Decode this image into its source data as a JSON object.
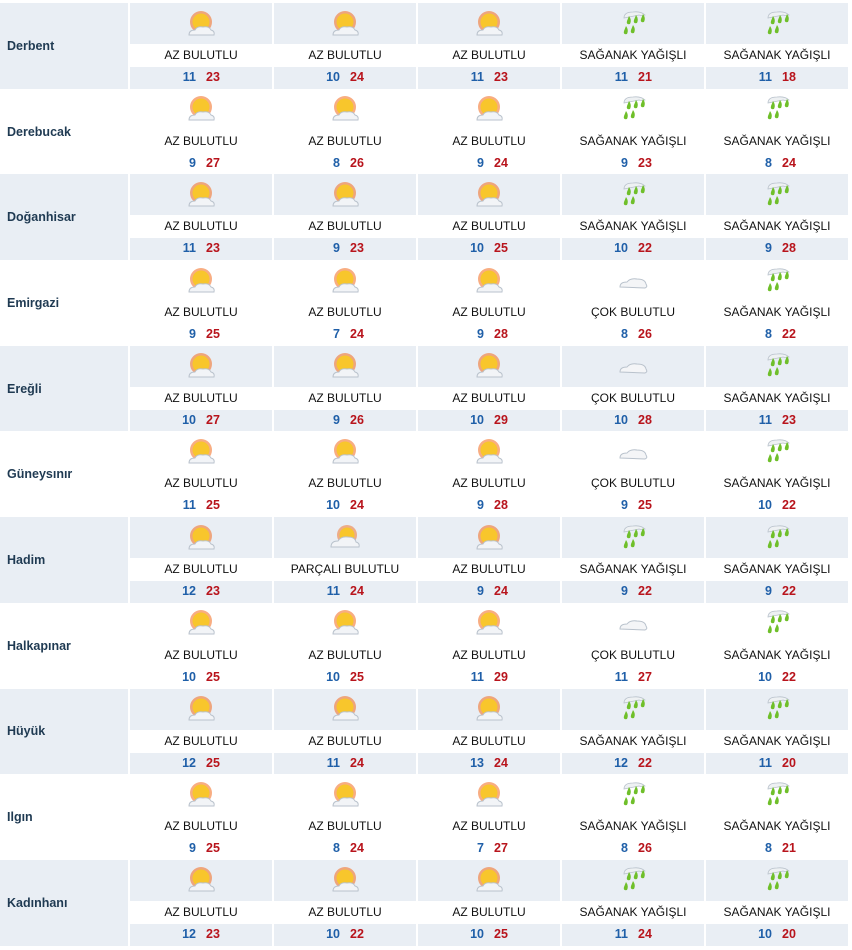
{
  "conditions": {
    "az": "AZ BULUTLU",
    "parcali": "PARÇALI BULUTLU",
    "cok": "ÇOK BULUTLU",
    "saganak": "SAĞANAK YAĞIŞLI"
  },
  "colors": {
    "min": "#1f5fa8",
    "max": "#b8141c",
    "row_alt": "#e9eef4"
  },
  "rows": [
    {
      "city": "Derbent",
      "days": [
        {
          "c": "az",
          "label": "AZ BULUTLU",
          "min": "11",
          "max": "23"
        },
        {
          "c": "az",
          "label": "AZ BULUTLU",
          "min": "10",
          "max": "24"
        },
        {
          "c": "az",
          "label": "AZ BULUTLU",
          "min": "11",
          "max": "23"
        },
        {
          "c": "saganak",
          "label": "SAĞANAK YAĞIŞLI",
          "min": "11",
          "max": "21"
        },
        {
          "c": "saganak",
          "label": "SAĞANAK YAĞIŞLI",
          "min": "11",
          "max": "18"
        }
      ]
    },
    {
      "city": "Derebucak",
      "days": [
        {
          "c": "az",
          "label": "AZ BULUTLU",
          "min": "9",
          "max": "27"
        },
        {
          "c": "az",
          "label": "AZ BULUTLU",
          "min": "8",
          "max": "26"
        },
        {
          "c": "az",
          "label": "AZ BULUTLU",
          "min": "9",
          "max": "24"
        },
        {
          "c": "saganak",
          "label": "SAĞANAK YAĞIŞLI",
          "min": "9",
          "max": "23"
        },
        {
          "c": "saganak",
          "label": "SAĞANAK YAĞIŞLI",
          "min": "8",
          "max": "24"
        }
      ]
    },
    {
      "city": "Doğanhisar",
      "days": [
        {
          "c": "az",
          "label": "AZ BULUTLU",
          "min": "11",
          "max": "23"
        },
        {
          "c": "az",
          "label": "AZ BULUTLU",
          "min": "9",
          "max": "23"
        },
        {
          "c": "az",
          "label": "AZ BULUTLU",
          "min": "10",
          "max": "25"
        },
        {
          "c": "saganak",
          "label": "SAĞANAK YAĞIŞLI",
          "min": "10",
          "max": "22"
        },
        {
          "c": "saganak",
          "label": "SAĞANAK YAĞIŞLI",
          "min": "9",
          "max": "28"
        }
      ]
    },
    {
      "city": "Emirgazi",
      "days": [
        {
          "c": "az",
          "label": "AZ BULUTLU",
          "min": "9",
          "max": "25"
        },
        {
          "c": "az",
          "label": "AZ BULUTLU",
          "min": "7",
          "max": "24"
        },
        {
          "c": "az",
          "label": "AZ BULUTLU",
          "min": "9",
          "max": "28"
        },
        {
          "c": "cok",
          "label": "ÇOK BULUTLU",
          "min": "8",
          "max": "26"
        },
        {
          "c": "saganak",
          "label": "SAĞANAK YAĞIŞLI",
          "min": "8",
          "max": "22"
        }
      ]
    },
    {
      "city": "Ereğli",
      "days": [
        {
          "c": "az",
          "label": "AZ BULUTLU",
          "min": "10",
          "max": "27"
        },
        {
          "c": "az",
          "label": "AZ BULUTLU",
          "min": "9",
          "max": "26"
        },
        {
          "c": "az",
          "label": "AZ BULUTLU",
          "min": "10",
          "max": "29"
        },
        {
          "c": "cok",
          "label": "ÇOK BULUTLU",
          "min": "10",
          "max": "28"
        },
        {
          "c": "saganak",
          "label": "SAĞANAK YAĞIŞLI",
          "min": "11",
          "max": "23"
        }
      ]
    },
    {
      "city": "Güneysınır",
      "days": [
        {
          "c": "az",
          "label": "AZ BULUTLU",
          "min": "11",
          "max": "25"
        },
        {
          "c": "az",
          "label": "AZ BULUTLU",
          "min": "10",
          "max": "24"
        },
        {
          "c": "az",
          "label": "AZ BULUTLU",
          "min": "9",
          "max": "28"
        },
        {
          "c": "cok",
          "label": "ÇOK BULUTLU",
          "min": "9",
          "max": "25"
        },
        {
          "c": "saganak",
          "label": "SAĞANAK YAĞIŞLI",
          "min": "10",
          "max": "22"
        }
      ]
    },
    {
      "city": "Hadim",
      "days": [
        {
          "c": "az",
          "label": "AZ BULUTLU",
          "min": "12",
          "max": "23"
        },
        {
          "c": "parcali",
          "label": "PARÇALI BULUTLU",
          "min": "11",
          "max": "24"
        },
        {
          "c": "az",
          "label": "AZ BULUTLU",
          "min": "9",
          "max": "24"
        },
        {
          "c": "saganak",
          "label": "SAĞANAK YAĞIŞLI",
          "min": "9",
          "max": "22"
        },
        {
          "c": "saganak",
          "label": "SAĞANAK YAĞIŞLI",
          "min": "9",
          "max": "22"
        }
      ]
    },
    {
      "city": "Halkapınar",
      "days": [
        {
          "c": "az",
          "label": "AZ BULUTLU",
          "min": "10",
          "max": "25"
        },
        {
          "c": "az",
          "label": "AZ BULUTLU",
          "min": "10",
          "max": "25"
        },
        {
          "c": "az",
          "label": "AZ BULUTLU",
          "min": "11",
          "max": "29"
        },
        {
          "c": "cok",
          "label": "ÇOK BULUTLU",
          "min": "11",
          "max": "27"
        },
        {
          "c": "saganak",
          "label": "SAĞANAK YAĞIŞLI",
          "min": "10",
          "max": "22"
        }
      ]
    },
    {
      "city": "Hüyük",
      "days": [
        {
          "c": "az",
          "label": "AZ BULUTLU",
          "min": "12",
          "max": "25"
        },
        {
          "c": "az",
          "label": "AZ BULUTLU",
          "min": "11",
          "max": "24"
        },
        {
          "c": "az",
          "label": "AZ BULUTLU",
          "min": "13",
          "max": "24"
        },
        {
          "c": "saganak",
          "label": "SAĞANAK YAĞIŞLI",
          "min": "12",
          "max": "22"
        },
        {
          "c": "saganak",
          "label": "SAĞANAK YAĞIŞLI",
          "min": "11",
          "max": "20"
        }
      ]
    },
    {
      "city": "Ilgın",
      "days": [
        {
          "c": "az",
          "label": "AZ BULUTLU",
          "min": "9",
          "max": "25"
        },
        {
          "c": "az",
          "label": "AZ BULUTLU",
          "min": "8",
          "max": "24"
        },
        {
          "c": "az",
          "label": "AZ BULUTLU",
          "min": "7",
          "max": "27"
        },
        {
          "c": "saganak",
          "label": "SAĞANAK YAĞIŞLI",
          "min": "8",
          "max": "26"
        },
        {
          "c": "saganak",
          "label": "SAĞANAK YAĞIŞLI",
          "min": "8",
          "max": "21"
        }
      ]
    },
    {
      "city": "Kadınhanı",
      "days": [
        {
          "c": "az",
          "label": "AZ BULUTLU",
          "min": "12",
          "max": "23"
        },
        {
          "c": "az",
          "label": "AZ BULUTLU",
          "min": "10",
          "max": "22"
        },
        {
          "c": "az",
          "label": "AZ BULUTLU",
          "min": "10",
          "max": "25"
        },
        {
          "c": "saganak",
          "label": "SAĞANAK YAĞIŞLI",
          "min": "11",
          "max": "24"
        },
        {
          "c": "saganak",
          "label": "SAĞANAK YAĞIŞLI",
          "min": "10",
          "max": "20"
        }
      ]
    }
  ]
}
